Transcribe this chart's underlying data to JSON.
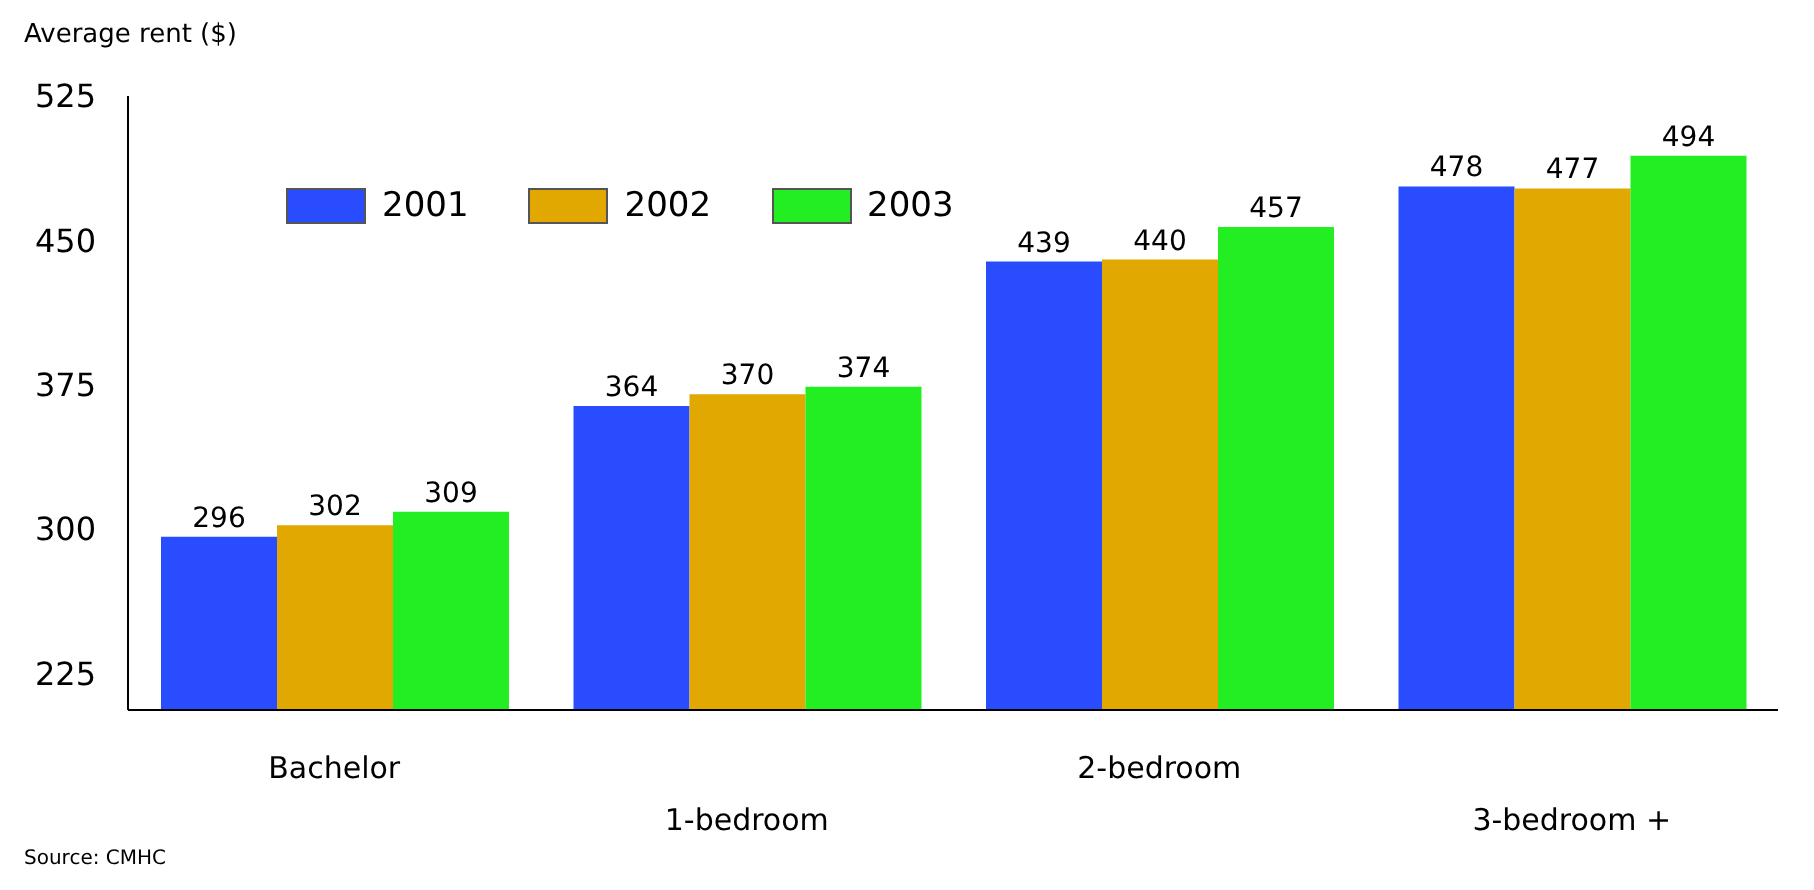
{
  "chart_data": {
    "type": "bar",
    "ylabel": "Average rent ($)",
    "categories": [
      "Bachelor",
      "1-bedroom",
      "2-bedroom",
      "3-bedroom +"
    ],
    "series": [
      {
        "name": "2001",
        "color": "#2a4cff",
        "values": [
          296,
          364,
          439,
          478
        ]
      },
      {
        "name": "2002",
        "color": "#e0a800",
        "values": [
          302,
          370,
          440,
          477
        ]
      },
      {
        "name": "2003",
        "color": "#22ee22",
        "values": [
          309,
          374,
          457,
          494
        ]
      }
    ],
    "ylim": [
      206,
      525
    ],
    "yticks": [
      225,
      300,
      375,
      450,
      525
    ],
    "data_labels": true,
    "legend": "top left",
    "grid": false,
    "annotations": [
      "Source: CMHC"
    ]
  }
}
